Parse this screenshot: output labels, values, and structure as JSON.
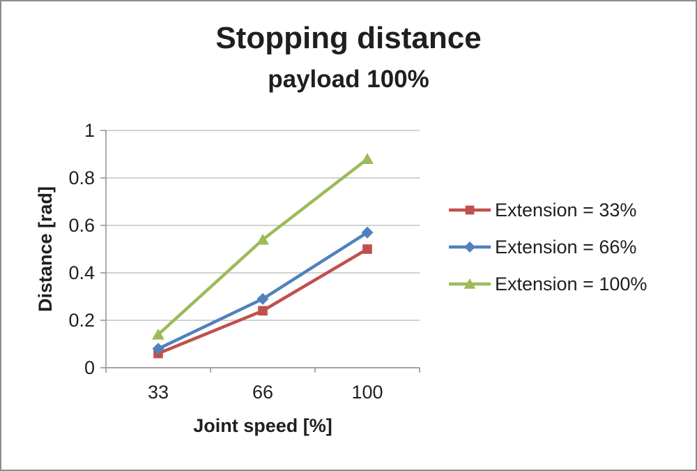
{
  "chart_data": {
    "type": "line",
    "title": "Stopping distance",
    "subtitle": "payload 100%",
    "xlabel": "Joint speed [%]",
    "ylabel": "Distance [rad]",
    "categories": [
      "33",
      "66",
      "100"
    ],
    "yticks": [
      0,
      0.2,
      0.4,
      0.6,
      0.8,
      1
    ],
    "ylim": [
      0,
      1
    ],
    "grid": "horizontal",
    "legend_position": "right",
    "colors": {
      "gridline": "#c3c3c3",
      "axis": "#8f8f8f",
      "text": "#1f1f1f"
    },
    "series": [
      {
        "name": "Extension = 33%",
        "marker": "square",
        "color": "#c0504d",
        "values": [
          0.06,
          0.24,
          0.5
        ]
      },
      {
        "name": "Extension = 66%",
        "marker": "diamond",
        "color": "#4f81bd",
        "values": [
          0.08,
          0.29,
          0.57
        ]
      },
      {
        "name": "Extension = 100%",
        "marker": "triangle",
        "color": "#9bbb59",
        "values": [
          0.14,
          0.54,
          0.88
        ]
      }
    ]
  }
}
